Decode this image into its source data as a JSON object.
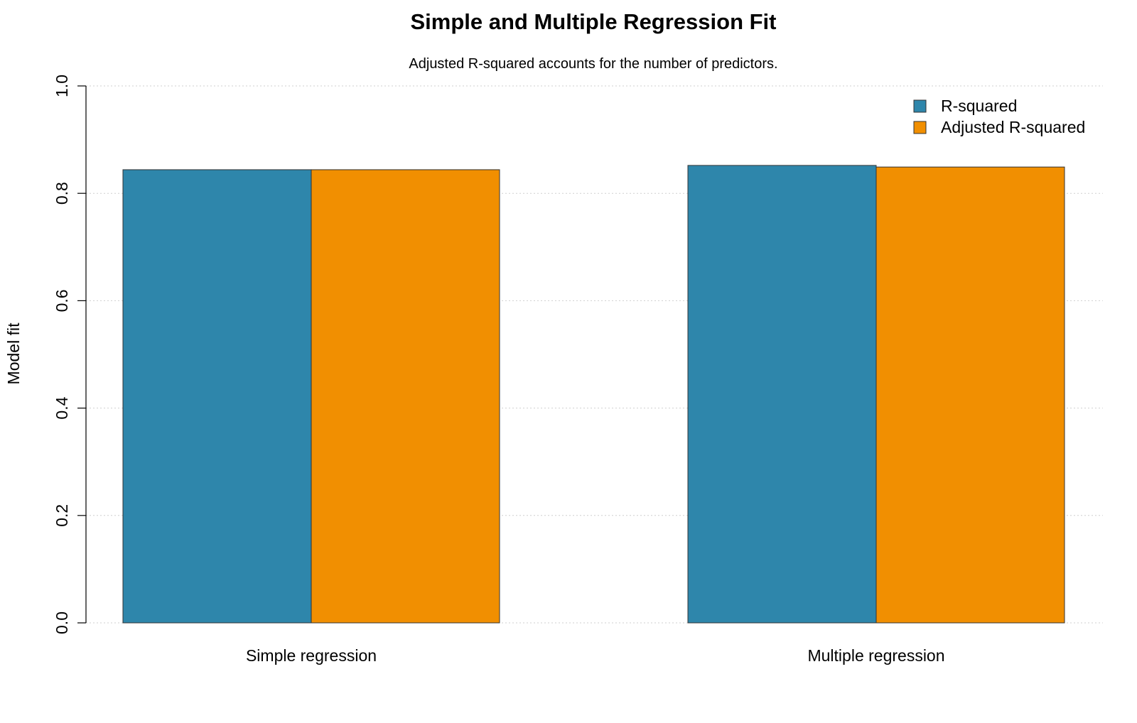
{
  "chart_data": {
    "type": "bar",
    "title": "Simple and Multiple Regression Fit",
    "subtitle": "Adjusted R-squared accounts for the number of predictors.",
    "xlabel": "",
    "ylabel": "Model fit",
    "categories": [
      "Simple regression",
      "Multiple regression"
    ],
    "series": [
      {
        "name": "R-squared",
        "values": [
          0.844,
          0.852
        ],
        "color": "#2E86AB"
      },
      {
        "name": "Adjusted R-squared",
        "values": [
          0.844,
          0.849
        ],
        "color": "#F18F01"
      }
    ],
    "ylim": [
      0,
      1
    ],
    "yticks": [
      "0.0",
      "0.2",
      "0.4",
      "0.6",
      "0.8",
      "1.0"
    ],
    "grid": true,
    "legend_position": "top-right"
  }
}
